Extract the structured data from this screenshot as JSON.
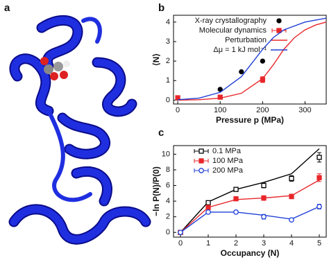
{
  "panel_a": {
    "label": "a"
  },
  "chart_data": [
    {
      "type": "line",
      "panel_label": "b",
      "xlabel": "Pressure p (MPa)",
      "ylabel": "⟨N⟩",
      "xlim": [
        -10,
        350
      ],
      "ylim": [
        -0.2,
        4.35
      ],
      "xticks": [
        0,
        100,
        200,
        300
      ],
      "yticks": [
        0,
        1,
        2,
        3,
        4
      ],
      "legend": "top-right",
      "series": [
        {
          "name": "X-ray crystallography",
          "kind": "points",
          "marker": "circle",
          "color": "#000000",
          "x": [
            0,
            100,
            150,
            200
          ],
          "values": [
            0.1,
            0.55,
            1.45,
            2.0
          ]
        },
        {
          "name": "Molecular dynamics",
          "kind": "points",
          "marker": "square",
          "color": "#e8262a",
          "x": [
            0,
            100,
            200
          ],
          "values": [
            0.12,
            0.15,
            1.05
          ],
          "errors": [
            0.03,
            0.05,
            0.15
          ]
        },
        {
          "name": "Perturbation",
          "kind": "line",
          "color": "#e8262a",
          "x": [
            0,
            50,
            100,
            150,
            200,
            225,
            250,
            275,
            300,
            325,
            350
          ],
          "values": [
            0,
            0.02,
            0.1,
            0.35,
            1.1,
            1.8,
            2.6,
            3.2,
            3.6,
            3.85,
            4.0
          ]
        },
        {
          "name": "Δμ = 1 kJ mol⁻¹",
          "kind": "line",
          "color": "#1f3fd6",
          "x": [
            0,
            50,
            100,
            150,
            175,
            200,
            225,
            250,
            300,
            350
          ],
          "values": [
            0.02,
            0.1,
            0.4,
            1.2,
            1.9,
            2.6,
            3.2,
            3.6,
            4.0,
            4.2
          ]
        }
      ]
    },
    {
      "type": "line",
      "panel_label": "c",
      "xlabel": "Occupancy (N)",
      "ylabel": "−ln P(N)/P(0)",
      "xlim": [
        -0.25,
        5.25
      ],
      "ylim": [
        -0.6,
        11.1
      ],
      "xticks": [
        0,
        1,
        2,
        3,
        4,
        5
      ],
      "yticks": [
        0,
        2,
        4,
        6,
        8,
        10
      ],
      "legend": "top-left",
      "x": [
        0,
        1,
        2,
        3,
        4,
        5
      ],
      "series": [
        {
          "name": "0.1 MPa",
          "marker": "square-open",
          "color": "#000000",
          "values": [
            0,
            3.8,
            5.5,
            6.0,
            6.9,
            9.6
          ],
          "errors": [
            0.05,
            0.15,
            0.2,
            0.3,
            0.35,
            0.6
          ],
          "line_values": [
            0,
            3.9,
            5.5,
            6.4,
            7.5,
            10.7
          ]
        },
        {
          "name": "100 MPa",
          "marker": "square",
          "color": "#e8262a",
          "values": [
            0,
            3.2,
            4.3,
            4.4,
            4.6,
            7.0
          ],
          "errors": [
            0.05,
            0.15,
            0.2,
            0.3,
            0.3,
            0.5
          ],
          "line_values": [
            0,
            3.2,
            4.2,
            4.4,
            4.7,
            6.7
          ]
        },
        {
          "name": "200 MPa",
          "marker": "circle-open",
          "color": "#1f3fd6",
          "values": [
            0,
            2.6,
            2.6,
            2.0,
            1.6,
            3.3
          ],
          "errors": [
            0.05,
            0.15,
            0.2,
            0.3,
            0.2,
            0.3
          ],
          "line_values": [
            0,
            2.6,
            2.6,
            2.2,
            1.7,
            3.3
          ]
        }
      ]
    }
  ]
}
